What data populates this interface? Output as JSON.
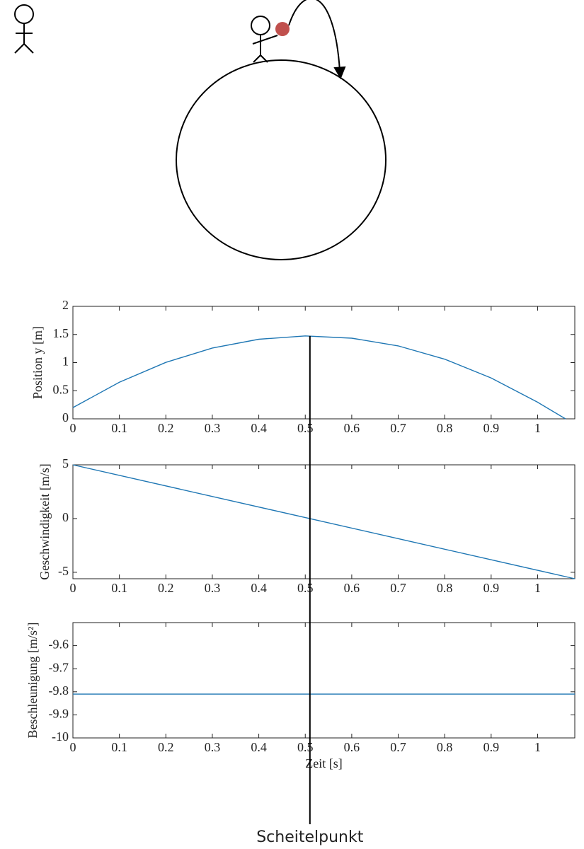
{
  "chart_data": [
    {
      "type": "line",
      "ylabel": "Position y [m]",
      "x": [
        0,
        0.1,
        0.2,
        0.3,
        0.4,
        0.5,
        0.6,
        0.7,
        0.8,
        0.9,
        1.0,
        1.06
      ],
      "values": [
        0.2,
        0.651,
        1.004,
        1.259,
        1.415,
        1.474,
        1.434,
        1.297,
        1.061,
        0.727,
        0.295,
        0
      ],
      "color": "#1f77b4",
      "xlim": [
        0,
        1.08
      ],
      "xticks": [
        0,
        0.1,
        0.2,
        0.3,
        0.4,
        0.5,
        0.6,
        0.7,
        0.8,
        0.9,
        1
      ],
      "ylim": [
        0,
        2
      ],
      "yticks": [
        0,
        0.5,
        1,
        1.5,
        2
      ]
    },
    {
      "type": "line",
      "ylabel": "Geschwindigkeit [m/s]",
      "x": [
        0,
        1.08
      ],
      "values": [
        5,
        -5.6
      ],
      "color": "#1f77b4",
      "xlim": [
        0,
        1.08
      ],
      "xticks": [
        0,
        0.1,
        0.2,
        0.3,
        0.4,
        0.5,
        0.6,
        0.7,
        0.8,
        0.9,
        1
      ],
      "ylim": [
        -5.6,
        5
      ],
      "yticks": [
        -5,
        0,
        5
      ]
    },
    {
      "type": "line",
      "ylabel": "Beschleunigung [m/s²]",
      "xlabel": "Zeit [s]",
      "x": [
        0,
        1.08
      ],
      "values": [
        -9.81,
        -9.81
      ],
      "color": "#1f77b4",
      "xlim": [
        0,
        1.08
      ],
      "xticks": [
        0,
        0.1,
        0.2,
        0.3,
        0.4,
        0.5,
        0.6,
        0.7,
        0.8,
        0.9,
        1
      ],
      "ylim": [
        -10,
        -9.5
      ],
      "yticks": [
        -10,
        -9.9,
        -9.8,
        -9.7,
        -9.6
      ]
    }
  ],
  "apex": {
    "label": "Scheitelpunkt",
    "x": 0.51,
    "y": 1.474
  }
}
